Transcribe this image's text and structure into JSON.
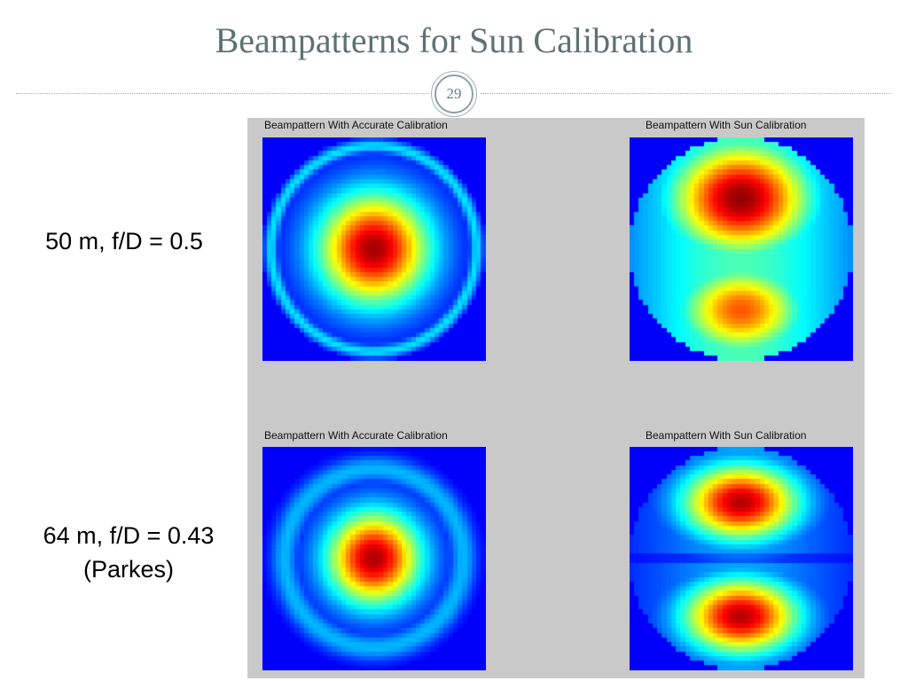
{
  "title": "Beampatterns for Sun Calibration",
  "page_number": "29",
  "rows": [
    {
      "label_lines": [
        "50 m, f/D = 0.5"
      ]
    },
    {
      "label_lines": [
        "64 m, f/D = 0.43",
        "(Parkes)"
      ]
    }
  ],
  "plots": [
    {
      "title": "Beampattern With Accurate Calibration",
      "pattern": "accurate-50m"
    },
    {
      "title": "Beampattern With Sun Calibration",
      "pattern": "sun-50m"
    },
    {
      "title": "Beampattern With Accurate Calibration",
      "pattern": "accurate-64m"
    },
    {
      "title": "Beampattern With Sun Calibration",
      "pattern": "sun-64m"
    }
  ],
  "colors": {
    "title": "#5e7272",
    "panel_background": "#c9c9c9",
    "colormap": "jet"
  }
}
